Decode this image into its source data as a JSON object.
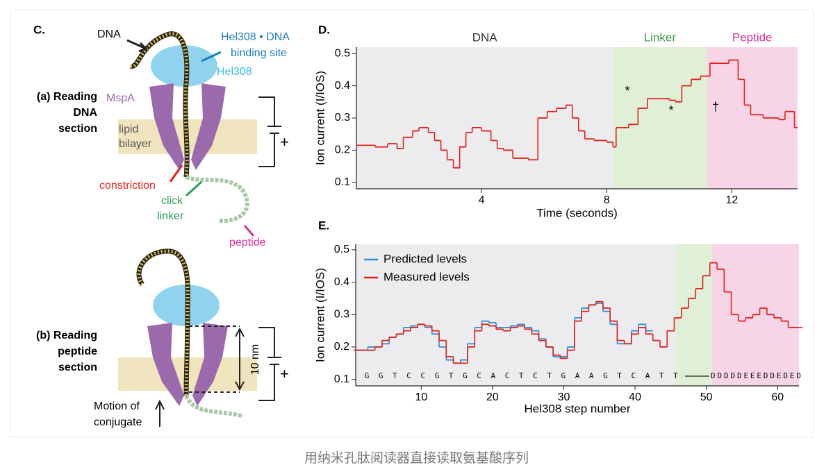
{
  "caption": "用纳米孔肽阅读器直接读取氨基酸序列",
  "figure": {
    "panel": "C.",
    "dna": "DNA",
    "binding_site": [
      "Hel308 • DNA",
      "binding site"
    ],
    "hel308": "Hel308",
    "reading_dna": [
      "(a) Reading",
      "DNA",
      "section"
    ],
    "mspa": "MspA",
    "bilayer": [
      "lipid",
      "bilayer"
    ],
    "plus_a": "+",
    "constriction": "constriction",
    "click_linker": [
      "click",
      "linker"
    ],
    "peptide": "peptide",
    "reading_peptide": [
      "(b) Reading",
      "peptide",
      "section"
    ],
    "distance": "10 nm",
    "plus_b": "+",
    "motion": [
      "Motion of",
      "conjugate"
    ]
  },
  "chart_data": [
    {
      "type": "step",
      "panel": "D.",
      "xlabel": "Time (seconds)",
      "ylabel": "Ion current (I/IOS)",
      "xlim": [
        0,
        14.1
      ],
      "xticks": [
        4,
        8,
        12
      ],
      "ylim": [
        0.08,
        0.52
      ],
      "yticks": [
        0.1,
        0.2,
        0.3,
        0.4,
        0.5
      ],
      "regions": [
        {
          "label": "DNA",
          "range": [
            0,
            8.2
          ],
          "color": "#ececef",
          "text_color": "#333333"
        },
        {
          "label": "Linker",
          "range": [
            8.2,
            11.2
          ],
          "color": "#dff0d6",
          "text_color": "#3f9a45"
        },
        {
          "label": "Peptide",
          "range": [
            11.2,
            14.1
          ],
          "color": "#f8d5e6",
          "text_color": "#d6339a"
        }
      ],
      "annotations": [
        "*",
        "*",
        "†"
      ],
      "x": [
        0,
        0.6,
        1.0,
        1.3,
        1.5,
        1.8,
        2.0,
        2.3,
        2.5,
        2.7,
        2.9,
        3.1,
        3.3,
        3.5,
        3.7,
        4.0,
        4.3,
        4.5,
        4.7,
        5.0,
        5.5,
        5.8,
        6.1,
        6.4,
        6.7,
        6.9,
        7.1,
        7.3,
        7.6,
        8.0,
        8.2,
        8.3,
        8.7,
        9.0,
        9.3,
        9.6,
        10.0,
        10.2,
        10.4,
        10.7,
        11.0,
        11.3,
        11.6,
        11.9,
        12.2,
        12.4,
        12.6,
        13.0,
        13.5,
        13.7,
        14.0
      ],
      "series": [
        {
          "color": "#e0201c",
          "values": [
            0.215,
            0.21,
            0.22,
            0.205,
            0.24,
            0.26,
            0.27,
            0.255,
            0.23,
            0.2,
            0.17,
            0.145,
            0.21,
            0.255,
            0.27,
            0.26,
            0.23,
            0.205,
            0.2,
            0.175,
            0.17,
            0.3,
            0.32,
            0.33,
            0.34,
            0.3,
            0.26,
            0.235,
            0.23,
            0.225,
            0.21,
            0.27,
            0.28,
            0.33,
            0.36,
            0.36,
            0.355,
            0.35,
            0.4,
            0.42,
            0.43,
            0.47,
            0.47,
            0.48,
            0.42,
            0.34,
            0.31,
            0.3,
            0.295,
            0.32,
            0.27
          ]
        }
      ]
    },
    {
      "type": "step",
      "panel": "E.",
      "xlabel": "Hel308 step number",
      "ylabel": "Ion current (I/IOS)",
      "xlim": [
        0.8,
        63
      ],
      "xticks": [
        10,
        20,
        30,
        40,
        50,
        60
      ],
      "ylim": [
        0.08,
        0.517
      ],
      "yticks": [
        0.1,
        0.2,
        0.3,
        0.4,
        0.5
      ],
      "regions": [
        {
          "range": [
            0.8,
            45.7
          ],
          "color": "#ececef"
        },
        {
          "range": [
            45.7,
            50.8
          ],
          "color": "#dff0d6"
        },
        {
          "range": [
            50.8,
            63
          ],
          "color": "#f8d5e6"
        }
      ],
      "legend": "upper left",
      "sequence_dna": [
        "G",
        "G",
        "T",
        "C",
        "C",
        "G",
        "T",
        "G",
        "C",
        "A",
        "C",
        "T",
        "C",
        "T",
        "G",
        "A",
        "A",
        "G",
        "T",
        "C",
        "A",
        "T",
        "T"
      ],
      "sequence_peptide": "DDDDDEEEDDEDED",
      "x": [
        1,
        2,
        3,
        4,
        5,
        6,
        7,
        8,
        9,
        10,
        11,
        12,
        13,
        14,
        15,
        16,
        17,
        18,
        19,
        20,
        21,
        22,
        23,
        24,
        25,
        26,
        27,
        28,
        29,
        30,
        31,
        32,
        33,
        34,
        35,
        36,
        37,
        38,
        39,
        40,
        41,
        42,
        43,
        44,
        45,
        46,
        47,
        48,
        49,
        50,
        51,
        52,
        53,
        54,
        55,
        56,
        57,
        58,
        59,
        60,
        61,
        62,
        63
      ],
      "series": [
        {
          "name": "Predicted levels",
          "color": "#2a8fd0",
          "values": [
            0.19,
            0.19,
            0.2,
            0.2,
            0.21,
            0.23,
            0.24,
            0.26,
            0.265,
            0.27,
            0.26,
            0.24,
            0.2,
            0.16,
            0.15,
            0.16,
            0.21,
            0.26,
            0.28,
            0.275,
            0.26,
            0.26,
            0.265,
            0.27,
            0.26,
            0.25,
            0.225,
            0.2,
            0.17,
            0.17,
            0.2,
            0.29,
            0.32,
            0.33,
            0.335,
            0.31,
            0.27,
            0.21,
            0.21,
            0.25,
            0.27,
            0.25,
            null,
            null,
            null,
            null,
            null,
            null,
            null,
            null,
            null,
            null,
            null,
            null,
            null,
            null,
            null,
            null,
            null,
            null,
            null,
            null,
            null
          ]
        },
        {
          "name": "Measured levels",
          "color": "#e0201c",
          "values": [
            0.19,
            0.19,
            0.19,
            0.2,
            0.22,
            0.23,
            0.24,
            0.25,
            0.26,
            0.27,
            0.265,
            0.25,
            0.22,
            0.17,
            0.15,
            0.15,
            0.2,
            0.25,
            0.27,
            0.265,
            0.255,
            0.25,
            0.26,
            0.265,
            0.255,
            0.24,
            0.22,
            0.2,
            0.175,
            0.165,
            0.19,
            0.28,
            0.31,
            0.33,
            0.34,
            0.32,
            0.28,
            0.22,
            0.21,
            0.24,
            0.26,
            0.24,
            0.22,
            0.2,
            0.25,
            0.29,
            0.32,
            0.35,
            0.38,
            0.42,
            0.46,
            0.44,
            0.37,
            0.3,
            0.28,
            0.29,
            0.3,
            0.32,
            0.3,
            0.29,
            0.28,
            0.26,
            0.26
          ]
        }
      ]
    }
  ]
}
